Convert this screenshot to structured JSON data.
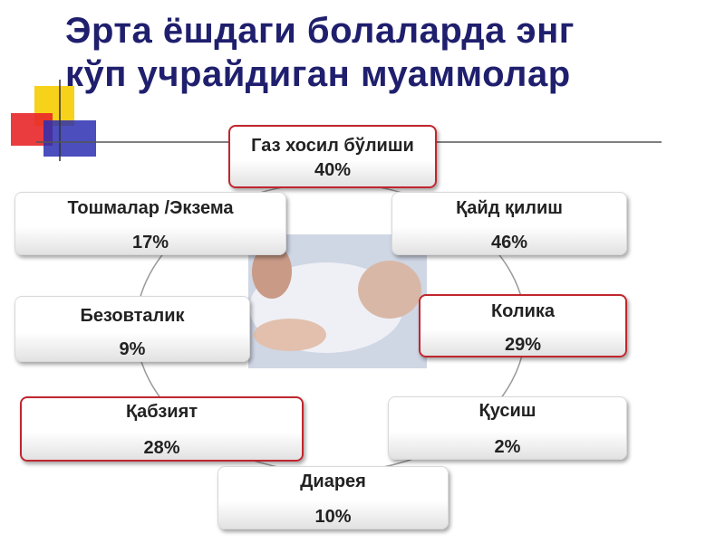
{
  "title": {
    "lines": [
      "Эрта ёшдаги болаларда энг",
      "кўп учрайдиган муаммолар"
    ]
  },
  "nodes": [
    {
      "label": "Газ хосил бўлиши",
      "value": "40%"
    },
    {
      "label": "Тошмалар /Экзема",
      "value": "17%"
    },
    {
      "label": "Қайд қилиш",
      "value": "46%"
    },
    {
      "label": "Безовталик",
      "value": "9%"
    },
    {
      "label": "Колика",
      "value": "29%"
    },
    {
      "label": "Қабзият",
      "value": "28%"
    },
    {
      "label": "Қусиш",
      "value": "2%"
    },
    {
      "label": "Диарея",
      "value": "10%"
    }
  ]
}
